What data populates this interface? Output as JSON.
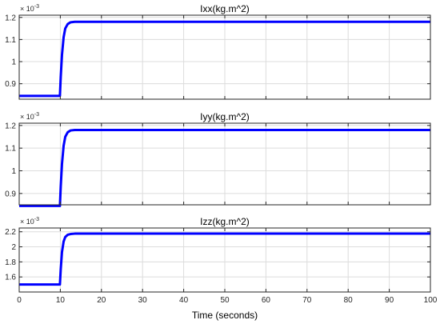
{
  "chart_data": [
    {
      "type": "line",
      "title": "Ixx(kg.m^2)",
      "exponent_base": "× 10",
      "exponent_power": "-3",
      "xlim": [
        0,
        100
      ],
      "ylim": [
        0.83,
        1.21
      ],
      "x_ticks": [
        0,
        10,
        20,
        30,
        40,
        50,
        60,
        70,
        80,
        90,
        100
      ],
      "y_ticks": [
        0.9,
        1.0,
        1.1,
        1.2
      ],
      "y_tick_labels": [
        "0.9",
        "1",
        "1.1",
        "1.2"
      ],
      "grid": true,
      "line_color": "#0000ff",
      "series": [
        {
          "x": [
            0,
            9.9,
            10.1,
            10.4,
            10.8,
            11.2,
            11.8,
            12.5,
            13.5,
            100
          ],
          "y": [
            0.845,
            0.845,
            0.93,
            1.03,
            1.11,
            1.15,
            1.17,
            1.178,
            1.18,
            1.18
          ]
        }
      ]
    },
    {
      "type": "line",
      "title": "Iyy(kg.m^2)",
      "exponent_base": "× 10",
      "exponent_power": "-3",
      "xlim": [
        0,
        100
      ],
      "ylim": [
        0.85,
        1.21
      ],
      "x_ticks": [
        0,
        10,
        20,
        30,
        40,
        50,
        60,
        70,
        80,
        90,
        100
      ],
      "y_ticks": [
        0.9,
        1.0,
        1.1,
        1.2
      ],
      "y_tick_labels": [
        "0.9",
        "1",
        "1.1",
        "1.2"
      ],
      "grid": true,
      "line_color": "#0000ff",
      "series": [
        {
          "x": [
            0,
            9.9,
            10.1,
            10.4,
            10.8,
            11.2,
            11.8,
            12.5,
            13.5,
            100
          ],
          "y": [
            0.845,
            0.845,
            0.93,
            1.03,
            1.11,
            1.15,
            1.17,
            1.178,
            1.18,
            1.18
          ]
        }
      ]
    },
    {
      "type": "line",
      "title": "Izz(kg.m^2)",
      "exponent_base": "× 10",
      "exponent_power": "-3",
      "xlim": [
        0,
        100
      ],
      "ylim": [
        1.4,
        2.25
      ],
      "x_ticks": [
        0,
        10,
        20,
        30,
        40,
        50,
        60,
        70,
        80,
        90,
        100
      ],
      "x_tick_labels": [
        "0",
        "10",
        "20",
        "30",
        "40",
        "50",
        "60",
        "70",
        "80",
        "90",
        "100"
      ],
      "xlabel": "Time (seconds)",
      "y_ticks": [
        1.6,
        1.8,
        2.0,
        2.2
      ],
      "y_tick_labels": [
        "1.6",
        "1.8",
        "2",
        "2.2"
      ],
      "grid": true,
      "line_color": "#0000ff",
      "series": [
        {
          "x": [
            0,
            9.9,
            10.1,
            10.4,
            10.8,
            11.2,
            11.8,
            12.5,
            13.5,
            100
          ],
          "y": [
            1.5,
            1.5,
            1.7,
            1.93,
            2.07,
            2.13,
            2.16,
            2.17,
            2.175,
            2.175
          ]
        }
      ]
    }
  ]
}
